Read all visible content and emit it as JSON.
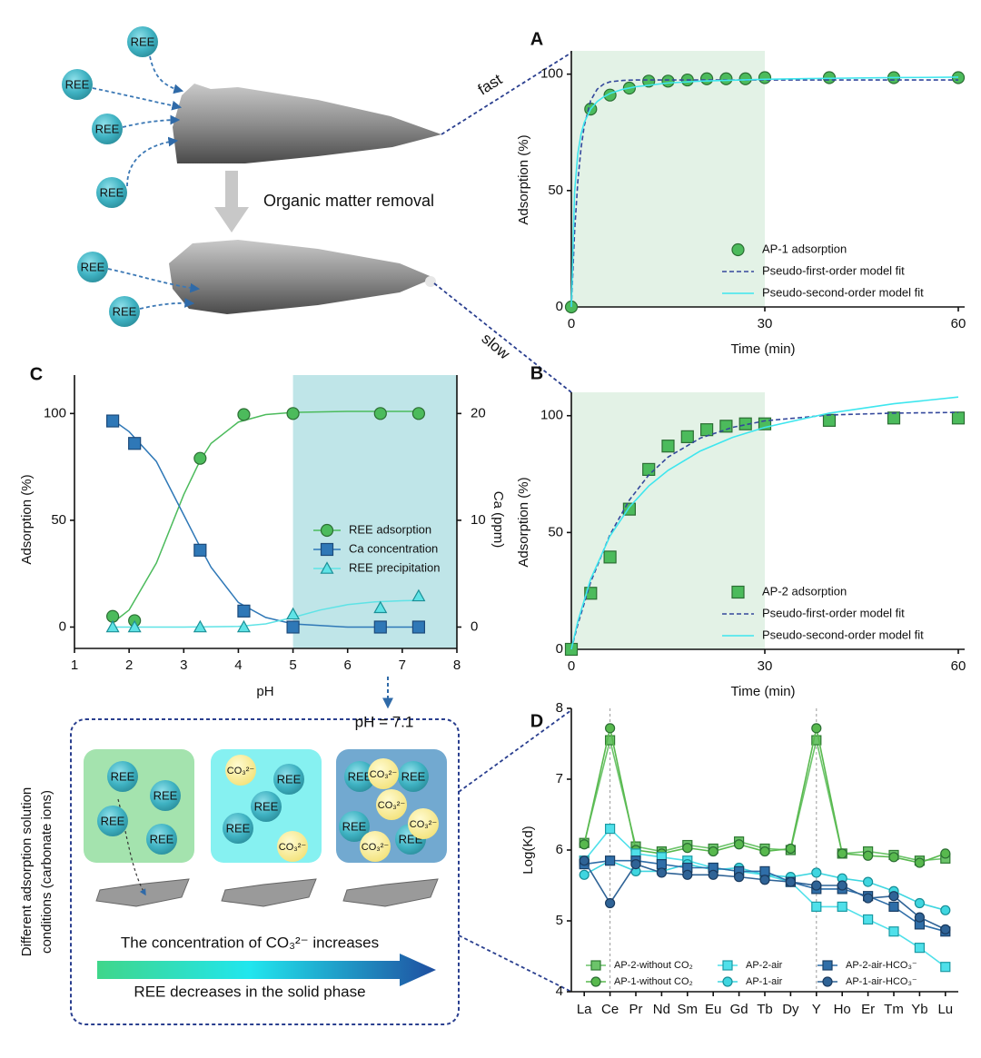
{
  "top_illustration": {
    "ions": [
      "REE",
      "REE",
      "REE",
      "REE",
      "REE",
      "REE"
    ],
    "caption": "Organic matter removal",
    "fast": "fast",
    "slow": "slow"
  },
  "bottom_illustration": {
    "ph": "pH = 7.1",
    "side_label": [
      "Different adsorption solution",
      "conditions (carbonate ions)"
    ],
    "boxes": [
      {
        "ree": [
          "REE",
          "REE",
          "REE",
          "REE"
        ],
        "carbonate": []
      },
      {
        "ree": [
          "REE",
          "REE",
          "REE"
        ],
        "carbonate": [
          "CO₃²⁻",
          "CO₃²⁻"
        ]
      },
      {
        "ree": [
          "REE",
          "REE",
          "REE",
          "REE"
        ],
        "carbonate": [
          "CO₃²⁻",
          "CO₃²⁻",
          "CO₃²⁻",
          "CO₃²⁻"
        ]
      }
    ],
    "arrow_top_text": "The concentration of CO₃²⁻ increases",
    "arrow_bottom_text": "REE decreases in the solid phase"
  },
  "chart_data": [
    {
      "type": "scatter",
      "panel": "A",
      "x_label": "Time (min)",
      "y_label": "Adsorption (%)",
      "xlim": [
        0,
        60
      ],
      "xticks": [
        0,
        30,
        60
      ],
      "ylim": [
        0,
        110
      ],
      "yticks": [
        0,
        50,
        100
      ],
      "shaded_x": [
        0,
        30
      ],
      "shade_color": "#e3f2e6",
      "legend": "lower right",
      "grid": false,
      "series": [
        {
          "name": "AP-1 adsorption",
          "color": "#4cbb5c",
          "edge": "#2b6e33",
          "marker": "circle",
          "line": "none",
          "x": [
            0,
            3,
            6,
            9,
            12,
            15,
            18,
            21,
            24,
            27,
            30,
            40,
            50,
            60
          ],
          "values": [
            0,
            85,
            91,
            94,
            97,
            97,
            97.5,
            98,
            98,
            98,
            98.5,
            98.5,
            98.5,
            98.5
          ]
        },
        {
          "name": "Pseudo-first-order model fit",
          "color": "#34489c",
          "marker": "none",
          "line": "dashed",
          "x": [
            0,
            0.5,
            1,
            1.5,
            2,
            3,
            4,
            5,
            6,
            8,
            10,
            15,
            20,
            30,
            40,
            50,
            60
          ],
          "values": [
            0,
            32.1,
            53.7,
            68.1,
            77.8,
            88.7,
            93.5,
            95.7,
            96.7,
            97.3,
            97.5,
            97.5,
            97.5,
            97.5,
            97.5,
            97.5,
            97.5
          ]
        },
        {
          "name": "Pseudo-second-order model fit",
          "color": "#3ee6ee",
          "marker": "none",
          "line": "solid",
          "x": [
            0,
            0.5,
            1,
            1.5,
            2,
            3,
            4,
            5,
            6,
            8,
            10,
            15,
            20,
            30,
            40,
            50,
            60
          ],
          "values": [
            0,
            49.2,
            65.8,
            74.2,
            79.2,
            85,
            88.2,
            90.2,
            91.7,
            93.5,
            94.6,
            96.2,
            97.0,
            97.8,
            98.2,
            98.5,
            98.7
          ]
        }
      ]
    },
    {
      "type": "scatter",
      "panel": "B",
      "x_label": "Time (min)",
      "y_label": "Adsorption (%)",
      "xlim": [
        0,
        60
      ],
      "xticks": [
        0,
        30,
        60
      ],
      "ylim": [
        0,
        110
      ],
      "yticks": [
        0,
        50,
        100
      ],
      "shaded_x": [
        0,
        30
      ],
      "shade_color": "#e3f2e6",
      "legend": "lower right",
      "grid": false,
      "series": [
        {
          "name": "AP-2 adsorption",
          "color": "#4cbb5c",
          "edge": "#2b6e33",
          "marker": "square",
          "line": "none",
          "x": [
            0,
            3,
            6,
            9,
            12,
            15,
            18,
            21,
            24,
            27,
            30,
            40,
            50,
            60
          ],
          "values": [
            0,
            24,
            39.5,
            60,
            77,
            87,
            91,
            94,
            95.5,
            96.5,
            96.5,
            98,
            99,
            99
          ]
        },
        {
          "name": "Pseudo-first-order model fit",
          "color": "#34489c",
          "marker": "none",
          "line": "dashed",
          "x": [
            0,
            1,
            3,
            6,
            9,
            12,
            15,
            20,
            25,
            30,
            40,
            50,
            60
          ],
          "values": [
            0,
            10.6,
            28.8,
            49.1,
            63.9,
            74.6,
            82.3,
            90.4,
            95.0,
            97.8,
            100.3,
            101.1,
            101.4
          ]
        },
        {
          "name": "Pseudo-second-order model fit",
          "color": "#3ee6ee",
          "marker": "none",
          "line": "solid",
          "x": [
            0,
            1,
            3,
            6,
            9,
            12,
            15,
            20,
            25,
            30,
            40,
            50,
            60
          ],
          "values": [
            0,
            11.9,
            30.1,
            48.5,
            60.9,
            69.9,
            76.6,
            84.9,
            90.7,
            95,
            101.1,
            105.1,
            108
          ]
        }
      ]
    },
    {
      "type": "scatter",
      "panel": "C",
      "x_label": "pH",
      "y_label": "Adsorption (%)",
      "y2_label": "Ca (ppm)",
      "xlim": [
        1,
        8
      ],
      "xticks": [
        1,
        2,
        3,
        4,
        5,
        6,
        7,
        8
      ],
      "ylim": [
        -10,
        118
      ],
      "yticks": [
        0,
        50,
        100
      ],
      "y2lim": [
        -2,
        23.6
      ],
      "y2ticks": [
        0,
        10,
        20
      ],
      "shaded_x": [
        5,
        8
      ],
      "shade_color": "#bfe5e8",
      "legend": "center right",
      "grid": false,
      "series": [
        {
          "name": "REE adsorption",
          "color": "#4cbb5c",
          "edge": "#2b6e33",
          "marker": "circle",
          "line": "none",
          "x": [
            1.7,
            2.1,
            3.3,
            4.1,
            5,
            6.6,
            7.3
          ],
          "values": [
            5,
            3,
            79,
            99.5,
            100,
            100,
            100
          ],
          "fit": {
            "x": [
              1.7,
              2,
              2.5,
              3,
              3.3,
              3.5,
              4,
              4.5,
              5,
              6,
              7,
              7.3
            ],
            "values": [
              2,
              8,
              30,
              62,
              78,
              86,
              96,
              99.5,
              100.5,
              101,
              101,
              101
            ]
          }
        },
        {
          "name": "Ca concentration",
          "color": "#2f78b7",
          "edge": "#1c4a7a",
          "marker": "square",
          "line": "none",
          "axis": "y2",
          "x": [
            1.7,
            2.1,
            3.3,
            4.1,
            5,
            6.6,
            7.3
          ],
          "values": [
            19.3,
            17.2,
            7.2,
            1.5,
            0,
            0,
            0
          ],
          "fit": {
            "x": [
              1.7,
              2,
              2.5,
              3,
              3.3,
              3.5,
              4,
              4.5,
              5,
              6,
              7,
              7.3
            ],
            "values": [
              19.4,
              18.3,
              15.5,
              10.5,
              7.5,
              5.6,
              2.3,
              0.9,
              0.3,
              0,
              0,
              0
            ]
          }
        },
        {
          "name": "REE precipitation",
          "color": "#5fe3e6",
          "edge": "#1b8f96",
          "marker": "triangle",
          "line": "none",
          "x": [
            1.7,
            2.1,
            3.3,
            4.1,
            5,
            6.6,
            7.3
          ],
          "values": [
            0,
            0,
            0,
            0,
            6,
            9,
            14.5
          ],
          "fit": {
            "x": [
              1.7,
              3,
              4,
              4.5,
              5,
              5.5,
              6,
              6.5,
              7,
              7.3
            ],
            "values": [
              0,
              0,
              0.3,
              1.5,
              4.5,
              8,
              10.5,
              11.8,
              12.3,
              12.5
            ]
          }
        }
      ]
    },
    {
      "type": "line",
      "panel": "D",
      "y_label": "Log(Kd)",
      "categories": [
        "La",
        "Ce",
        "Pr",
        "Nd",
        "Sm",
        "Eu",
        "Gd",
        "Tb",
        "Dy",
        "Y",
        "Ho",
        "Er",
        "Tm",
        "Yb",
        "Lu"
      ],
      "ylim": [
        4,
        8
      ],
      "yticks": [
        4,
        5,
        6,
        7,
        8
      ],
      "legend": "lower center",
      "grid": false,
      "series": [
        {
          "name": "AP-2-without CO₂",
          "color": "#6cc46a",
          "edge": "#2f7a32",
          "marker": "square",
          "line": "solid",
          "values": [
            6.1,
            7.55,
            6.05,
            5.98,
            6.07,
            6.02,
            6.12,
            6.02,
            6.0,
            7.55,
            5.95,
            5.98,
            5.93,
            5.85,
            5.88
          ]
        },
        {
          "name": "AP-1-without CO₂",
          "color": "#58b94e",
          "edge": "#2b6e33",
          "marker": "circle",
          "line": "solid",
          "values": [
            6.08,
            7.72,
            6.0,
            5.95,
            6.03,
            5.98,
            6.08,
            5.98,
            6.02,
            7.72,
            5.95,
            5.92,
            5.9,
            5.82,
            5.95
          ]
        },
        {
          "name": "AP-2-air",
          "color": "#4fe0ea",
          "edge": "#1b9aa3",
          "marker": "square",
          "line": "solid",
          "values": [
            5.85,
            6.3,
            5.95,
            5.9,
            5.85,
            5.75,
            5.7,
            5.65,
            5.55,
            5.2,
            5.2,
            5.02,
            4.85,
            4.62,
            4.35
          ]
        },
        {
          "name": "AP-1-air",
          "color": "#3fd6e0",
          "edge": "#178e97",
          "marker": "circle",
          "line": "solid",
          "values": [
            5.65,
            5.85,
            5.7,
            5.7,
            5.8,
            5.72,
            5.75,
            5.65,
            5.62,
            5.68,
            5.6,
            5.55,
            5.42,
            5.25,
            5.15
          ]
        },
        {
          "name": "AP-2-air-HCO₃⁻",
          "color": "#2f6ea8",
          "edge": "#1a3f66",
          "marker": "square",
          "line": "solid",
          "values": [
            5.8,
            5.85,
            5.85,
            5.8,
            5.75,
            5.75,
            5.7,
            5.7,
            5.55,
            5.45,
            5.45,
            5.35,
            5.2,
            4.95,
            4.85
          ]
        },
        {
          "name": "AP-1-air-HCO₃⁻",
          "color": "#2f6396",
          "edge": "#1a3a5e",
          "marker": "circle",
          "line": "solid",
          "values": [
            5.85,
            5.25,
            5.8,
            5.68,
            5.65,
            5.65,
            5.62,
            5.58,
            5.55,
            5.5,
            5.5,
            5.32,
            5.35,
            5.05,
            4.88
          ]
        }
      ]
    }
  ]
}
